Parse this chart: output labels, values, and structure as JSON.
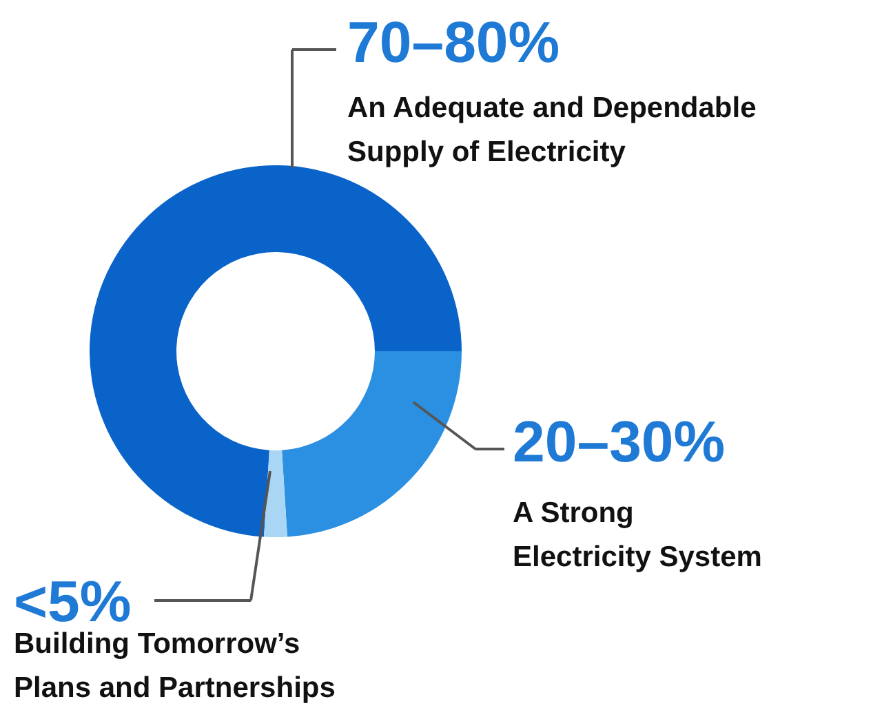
{
  "chart_data": {
    "type": "donut",
    "categories": [
      "An Adequate and Dependable Supply of Electricity",
      "A Strong Electricity System",
      "Building Tomorrow’s Plans and Partnerships"
    ],
    "values": [
      74,
      24,
      2
    ],
    "colors": [
      "#0a63c9",
      "#2b8fe2",
      "#a9d6f4"
    ],
    "annotations": [
      "70–80%",
      "20–30%",
      "<5%"
    ]
  }
}
